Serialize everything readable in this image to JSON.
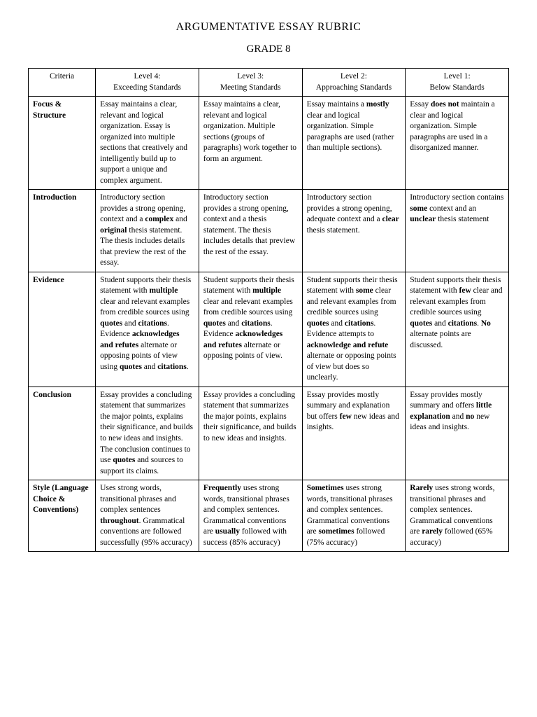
{
  "title": "ARGUMENTATIVE ESSAY RUBRIC",
  "subtitle": "GRADE 8",
  "headers": {
    "criteria": "Criteria",
    "l4a": "Level 4:",
    "l4b": "Exceeding Standards",
    "l3a": "Level 3:",
    "l3b": "Meeting Standards",
    "l2a": "Level 2:",
    "l2b": "Approaching Standards",
    "l1a": "Level 1:",
    "l1b": "Below Standards"
  },
  "rows": [
    {
      "criteria": "Focus & Structure",
      "l4": "Essay maintains a clear, relevant and logical organization. Essay is organized into multiple sections that creatively and intelligently build up to support a unique and complex argument.",
      "l3": "Essay maintains a clear, relevant and logical organization. Multiple sections (groups of paragraphs) work together to form an argument.",
      "l2": "Essay maintains a <b>mostly</b> clear and logical organization. Simple paragraphs are used (rather than multiple sections).",
      "l1": "Essay <b>does not</b> maintain a clear and logical organization. Simple paragraphs are used in a disorganized manner."
    },
    {
      "criteria": "Introduction",
      "l4": "Introductory section provides a strong opening, context and a <b>complex</b> and <b>original</b> thesis statement. The thesis includes details that preview the rest of the essay.",
      "l3": "Introductory section provides a strong opening, context and a thesis statement. The thesis includes details that preview the rest of the essay.",
      "l2": "Introductory section provides a strong opening, adequate context and a <b>clear</b> thesis statement.",
      "l1": "Introductory section contains <b>some</b> context and an <b>unclear</b> thesis statement"
    },
    {
      "criteria": "Evidence",
      "l4": "Student supports their thesis statement with <b>multiple</b> clear and relevant examples from credible sources using <b>quotes</b> and <b>citations</b>.  Evidence <b>acknowledges and refutes</b> alternate or opposing points of view using <b>quotes</b> and <b>citations</b>.",
      "l3": "Student supports their thesis statement with <b>multiple</b> clear and relevant examples from credible sources using <b>quotes</b> and <b>citations</b>. Evidence <b>acknowledges and refutes</b> alternate or opposing points of view.",
      "l2": "Student supports their thesis statement with <b>some</b> clear and relevant examples from credible sources using <b>quotes</b> and <b>citations</b>. Evidence attempts to <b>acknowledge and refute</b> alternate or opposing points of view but does so unclearly.",
      "l1": "Student supports their thesis statement with <b>few</b> clear and relevant examples from credible sources using <b>quotes</b> and <b>citations</b>.  <b>No</b> alternate points are discussed."
    },
    {
      "criteria": "Conclusion",
      "l4": "Essay provides a concluding statement that summarizes the major points, explains their significance, and builds to new ideas and insights. The conclusion continues to use <b>quotes</b> and sources to support its claims.",
      "l3": "Essay provides a concluding statement that summarizes the major points, explains their significance, and builds to new ideas and insights.",
      "l2": "Essay provides mostly summary and explanation but offers <b>few</b> new ideas and insights.",
      "l1": "Essay provides mostly summary and offers <b>little explanation</b> and <b>no</b> new ideas and insights."
    },
    {
      "criteria": "Style (Language Choice & Conventions)",
      "l4": "Uses strong words, transitional phrases and complex sentences <b>throughout</b>. Grammatical conventions are followed successfully (95% accuracy)",
      "l3": "<b>Frequently</b> uses strong words, transitional phrases and complex sentences. Grammatical conventions are <b>usually</b> followed with success (85% accuracy)",
      "l2": "<b>Sometimes</b> uses strong words, transitional phrases and complex sentences. Grammatical conventions are <b>sometimes</b> followed (75% accuracy)",
      "l1": "<b>Rarely</b> uses strong words, transitional phrases and complex sentences. Grammatical conventions are <b>rarely</b> followed (65% accuracy)"
    }
  ]
}
